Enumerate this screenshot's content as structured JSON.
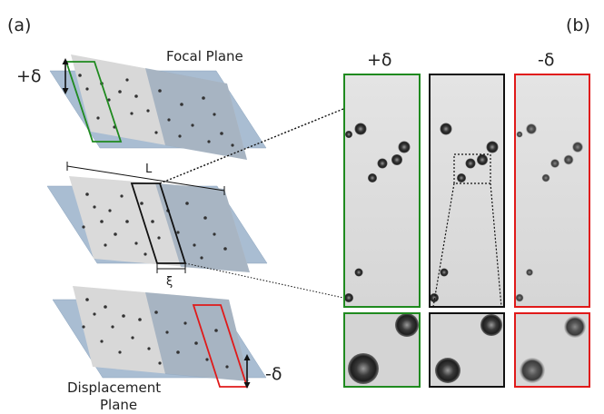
{
  "panels": {
    "a_label": "(a)",
    "b_label": "(b)"
  },
  "left_diagram": {
    "focal_plane_label": "Focal Plane",
    "displacement_label_line1": "Displacement",
    "displacement_label_line2": "Plane",
    "plus_delta": "+δ",
    "minus_delta": "-δ",
    "length_label": "L",
    "xi_label": "ξ"
  },
  "right_panel": {
    "plus_delta_header": "+δ",
    "minus_delta_header": "-δ"
  },
  "colors": {
    "plane_blue": "#a9bdd2",
    "plane_gray": "#d8d8d8",
    "green": "#1f8a1f",
    "black": "#111111",
    "red": "#e01a1a"
  }
}
